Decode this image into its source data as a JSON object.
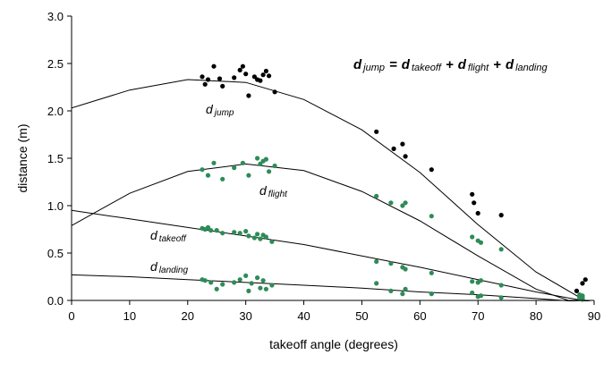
{
  "chart_data": {
    "type": "scatter",
    "title": "",
    "xlabel": "takeoff angle (degrees)",
    "ylabel": "distance (m)",
    "xlim": [
      0,
      90
    ],
    "ylim": [
      0.0,
      3.0
    ],
    "xticks": [
      "0",
      "10",
      "20",
      "30",
      "40",
      "50",
      "60",
      "70",
      "80",
      "90"
    ],
    "yticks": [
      "0.0",
      "0.5",
      "1.0",
      "1.5",
      "2.0",
      "2.5",
      "3.0"
    ],
    "grid": false,
    "equation": {
      "d": "d",
      "jump": "jump",
      "takeoff": "takeoff",
      "flight": "flight",
      "landing": "landing",
      "eq_sign": "=",
      "plus": "+"
    },
    "series": [
      {
        "name": "d jump",
        "label_main": "d",
        "label_sub": "jump",
        "color": "#000000",
        "trend": [
          [
            0,
            2.03
          ],
          [
            10,
            2.22
          ],
          [
            20,
            2.33
          ],
          [
            30,
            2.3
          ],
          [
            40,
            2.12
          ],
          [
            50,
            1.8
          ],
          [
            60,
            1.35
          ],
          [
            70,
            0.8
          ],
          [
            80,
            0.3
          ],
          [
            87,
            0.05
          ],
          [
            90,
            -0.05
          ]
        ],
        "points": [
          [
            22.5,
            2.36
          ],
          [
            23.0,
            2.28
          ],
          [
            23.5,
            2.33
          ],
          [
            24.5,
            2.47
          ],
          [
            25.5,
            2.34
          ],
          [
            26.0,
            2.26
          ],
          [
            28.0,
            2.35
          ],
          [
            29.0,
            2.43
          ],
          [
            29.5,
            2.47
          ],
          [
            30.0,
            2.39
          ],
          [
            30.5,
            2.16
          ],
          [
            31.5,
            2.36
          ],
          [
            32.0,
            2.33
          ],
          [
            32.5,
            2.32
          ],
          [
            33.0,
            2.38
          ],
          [
            33.5,
            2.42
          ],
          [
            34.0,
            2.37
          ],
          [
            35.0,
            2.2
          ],
          [
            52.5,
            1.78
          ],
          [
            55.5,
            1.6
          ],
          [
            57.0,
            1.65
          ],
          [
            57.5,
            1.52
          ],
          [
            62.0,
            1.38
          ],
          [
            69.0,
            1.12
          ],
          [
            69.3,
            1.03
          ],
          [
            70.0,
            0.92
          ],
          [
            74.0,
            0.9
          ],
          [
            87.0,
            0.1
          ],
          [
            88.0,
            0.18
          ],
          [
            88.5,
            0.22
          ]
        ]
      },
      {
        "name": "d flight",
        "label_main": "d",
        "label_sub": "flight",
        "color": "#2e8b57",
        "trend": [
          [
            0,
            0.79
          ],
          [
            10,
            1.13
          ],
          [
            20,
            1.36
          ],
          [
            30,
            1.44
          ],
          [
            40,
            1.37
          ],
          [
            50,
            1.15
          ],
          [
            60,
            0.84
          ],
          [
            70,
            0.47
          ],
          [
            80,
            0.12
          ],
          [
            87,
            -0.03
          ],
          [
            90,
            -0.08
          ]
        ],
        "points": [
          [
            22.5,
            1.38
          ],
          [
            23.5,
            1.32
          ],
          [
            24.5,
            1.45
          ],
          [
            26.0,
            1.28
          ],
          [
            28.0,
            1.4
          ],
          [
            29.5,
            1.45
          ],
          [
            30.5,
            1.32
          ],
          [
            32.0,
            1.5
          ],
          [
            32.5,
            1.44
          ],
          [
            33.0,
            1.47
          ],
          [
            33.5,
            1.49
          ],
          [
            34.0,
            1.36
          ],
          [
            35.0,
            1.42
          ],
          [
            52.5,
            1.1
          ],
          [
            55.0,
            1.03
          ],
          [
            57.0,
            1.0
          ],
          [
            57.5,
            1.03
          ],
          [
            62.0,
            0.89
          ],
          [
            69.0,
            0.67
          ],
          [
            70.0,
            0.63
          ],
          [
            70.5,
            0.61
          ],
          [
            74.0,
            0.54
          ],
          [
            87.5,
            0.06
          ],
          [
            88.0,
            0.03
          ]
        ]
      },
      {
        "name": "d takeoff",
        "label_main": "d",
        "label_sub": "takeoff",
        "color": "#2e8b57",
        "trend": [
          [
            0,
            0.95
          ],
          [
            10,
            0.86
          ],
          [
            20,
            0.77
          ],
          [
            30,
            0.68
          ],
          [
            40,
            0.59
          ],
          [
            50,
            0.47
          ],
          [
            60,
            0.35
          ],
          [
            70,
            0.22
          ],
          [
            80,
            0.09
          ],
          [
            87,
            0.01
          ],
          [
            90,
            -0.02
          ]
        ],
        "points": [
          [
            22.5,
            0.76
          ],
          [
            23.0,
            0.75
          ],
          [
            23.5,
            0.77
          ],
          [
            24.0,
            0.74
          ],
          [
            25.0,
            0.74
          ],
          [
            26.0,
            0.71
          ],
          [
            28.0,
            0.72
          ],
          [
            29.0,
            0.71
          ],
          [
            30.0,
            0.73
          ],
          [
            30.5,
            0.68
          ],
          [
            31.5,
            0.66
          ],
          [
            32.0,
            0.7
          ],
          [
            32.5,
            0.65
          ],
          [
            33.0,
            0.69
          ],
          [
            33.5,
            0.67
          ],
          [
            34.5,
            0.62
          ],
          [
            52.5,
            0.41
          ],
          [
            55.0,
            0.39
          ],
          [
            57.0,
            0.35
          ],
          [
            57.5,
            0.33
          ],
          [
            62.0,
            0.29
          ],
          [
            69.0,
            0.2
          ],
          [
            70.0,
            0.19
          ],
          [
            70.5,
            0.21
          ],
          [
            74.0,
            0.16
          ],
          [
            87.5,
            0.03
          ],
          [
            88.0,
            0.05
          ]
        ]
      },
      {
        "name": "d landing",
        "label_main": "d",
        "label_sub": "landing",
        "color": "#2e8b57",
        "trend": [
          [
            0,
            0.27
          ],
          [
            10,
            0.25
          ],
          [
            20,
            0.22
          ],
          [
            30,
            0.19
          ],
          [
            40,
            0.16
          ],
          [
            50,
            0.13
          ],
          [
            60,
            0.09
          ],
          [
            70,
            0.06
          ],
          [
            80,
            0.02
          ],
          [
            87,
            -0.01
          ],
          [
            90,
            -0.02
          ]
        ],
        "points": [
          [
            22.5,
            0.22
          ],
          [
            23.0,
            0.21
          ],
          [
            24.0,
            0.19
          ],
          [
            25.0,
            0.12
          ],
          [
            26.0,
            0.17
          ],
          [
            28.0,
            0.19
          ],
          [
            29.0,
            0.22
          ],
          [
            30.0,
            0.26
          ],
          [
            30.5,
            0.1
          ],
          [
            31.0,
            0.18
          ],
          [
            32.0,
            0.24
          ],
          [
            32.5,
            0.13
          ],
          [
            33.0,
            0.21
          ],
          [
            33.5,
            0.12
          ],
          [
            34.5,
            0.16
          ],
          [
            52.5,
            0.18
          ],
          [
            55.0,
            0.1
          ],
          [
            57.0,
            0.07
          ],
          [
            57.5,
            0.12
          ],
          [
            62.0,
            0.07
          ],
          [
            69.0,
            0.08
          ],
          [
            70.0,
            0.04
          ],
          [
            70.5,
            0.05
          ],
          [
            74.0,
            0.03
          ],
          [
            87.5,
            0.02
          ],
          [
            88.0,
            0.01
          ]
        ]
      }
    ]
  }
}
